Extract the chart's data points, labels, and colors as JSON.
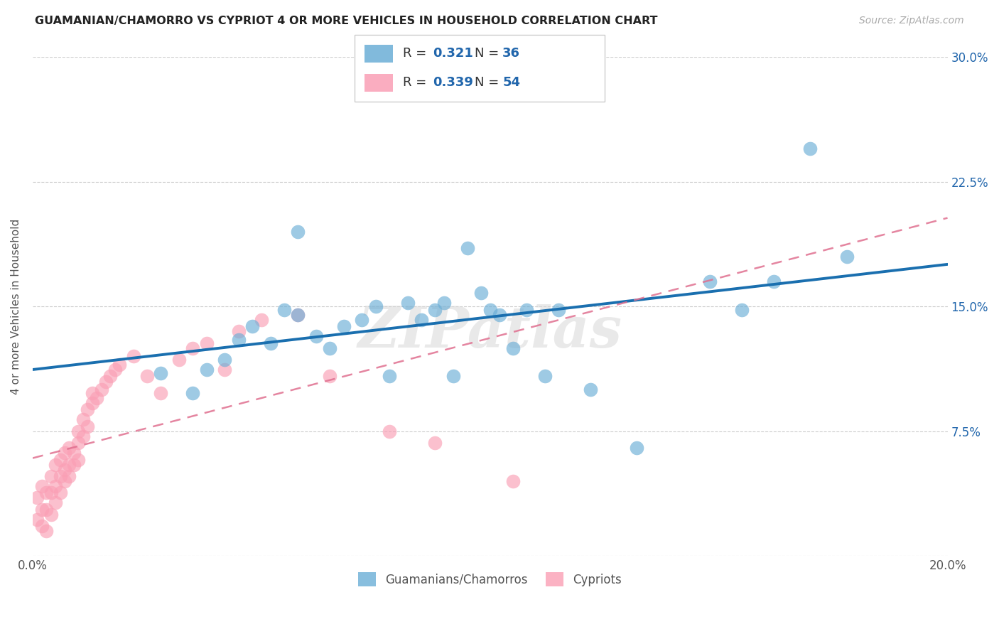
{
  "title": "GUAMANIAN/CHAMORRO VS CYPRIOT 4 OR MORE VEHICLES IN HOUSEHOLD CORRELATION CHART",
  "source": "Source: ZipAtlas.com",
  "ylabel": "4 or more Vehicles in Household",
  "xlim": [
    0.0,
    0.2
  ],
  "ylim": [
    0.0,
    0.3
  ],
  "xticks": [
    0.0,
    0.05,
    0.1,
    0.15,
    0.2
  ],
  "xtick_labels": [
    "0.0%",
    "",
    "",
    "",
    "20.0%"
  ],
  "yticks": [
    0.0,
    0.075,
    0.15,
    0.225,
    0.3
  ],
  "ytick_labels_right": [
    "",
    "7.5%",
    "15.0%",
    "22.5%",
    "30.0%"
  ],
  "legend_label1": "Guamanians/Chamorros",
  "legend_label2": "Cypriots",
  "blue_color": "#6baed6",
  "pink_color": "#fa9fb5",
  "blue_line_color": "#1a6faf",
  "pink_line_color": "#e07090",
  "watermark": "ZIPatlas",
  "blue_r": "0.321",
  "blue_n": "36",
  "pink_r": "0.339",
  "pink_n": "54",
  "blue_scatter_x": [
    0.048,
    0.055,
    0.028,
    0.058,
    0.042,
    0.065,
    0.038,
    0.072,
    0.082,
    0.09,
    0.068,
    0.075,
    0.088,
    0.098,
    0.052,
    0.062,
    0.045,
    0.035,
    0.058,
    0.095,
    0.102,
    0.108,
    0.115,
    0.112,
    0.085,
    0.1,
    0.105,
    0.148,
    0.155,
    0.078,
    0.092,
    0.122,
    0.132,
    0.162,
    0.178,
    0.17
  ],
  "blue_scatter_y": [
    0.138,
    0.148,
    0.11,
    0.145,
    0.118,
    0.125,
    0.112,
    0.142,
    0.152,
    0.152,
    0.138,
    0.15,
    0.148,
    0.158,
    0.128,
    0.132,
    0.13,
    0.098,
    0.195,
    0.185,
    0.145,
    0.148,
    0.148,
    0.108,
    0.142,
    0.148,
    0.125,
    0.165,
    0.148,
    0.108,
    0.108,
    0.1,
    0.065,
    0.165,
    0.18,
    0.245
  ],
  "pink_scatter_x": [
    0.001,
    0.001,
    0.002,
    0.002,
    0.002,
    0.003,
    0.003,
    0.003,
    0.004,
    0.004,
    0.004,
    0.005,
    0.005,
    0.005,
    0.006,
    0.006,
    0.006,
    0.007,
    0.007,
    0.007,
    0.008,
    0.008,
    0.008,
    0.009,
    0.009,
    0.01,
    0.01,
    0.01,
    0.011,
    0.011,
    0.012,
    0.012,
    0.013,
    0.013,
    0.014,
    0.015,
    0.016,
    0.017,
    0.018,
    0.019,
    0.022,
    0.025,
    0.028,
    0.032,
    0.035,
    0.038,
    0.042,
    0.045,
    0.05,
    0.058,
    0.065,
    0.078,
    0.088,
    0.105
  ],
  "pink_scatter_y": [
    0.022,
    0.035,
    0.018,
    0.028,
    0.042,
    0.015,
    0.028,
    0.038,
    0.025,
    0.038,
    0.048,
    0.032,
    0.042,
    0.055,
    0.048,
    0.038,
    0.058,
    0.052,
    0.045,
    0.062,
    0.055,
    0.048,
    0.065,
    0.062,
    0.055,
    0.068,
    0.058,
    0.075,
    0.072,
    0.082,
    0.078,
    0.088,
    0.092,
    0.098,
    0.095,
    0.1,
    0.105,
    0.108,
    0.112,
    0.115,
    0.12,
    0.108,
    0.098,
    0.118,
    0.125,
    0.128,
    0.112,
    0.135,
    0.142,
    0.145,
    0.108,
    0.075,
    0.068,
    0.045
  ]
}
